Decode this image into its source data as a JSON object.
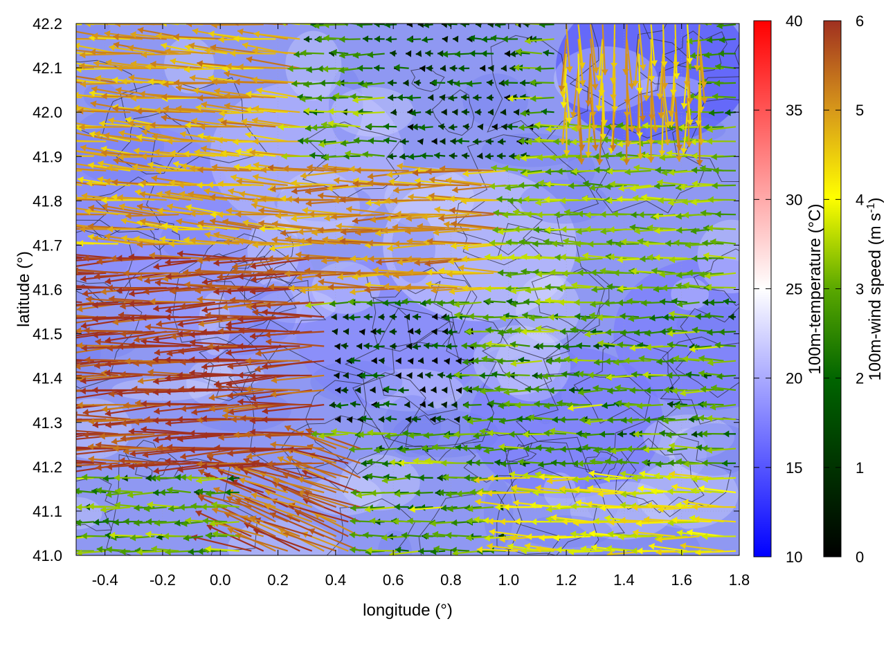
{
  "chart_data": {
    "type": "vector-field",
    "xlabel": "longitude (°)",
    "ylabel": "latitude (°)",
    "xlim": [
      -0.5,
      1.8
    ],
    "ylim": [
      41.0,
      42.2
    ],
    "xticks": [
      "-0.4",
      "-0.2",
      "0.0",
      "0.2",
      "0.4",
      "0.6",
      "0.8",
      "1.0",
      "1.2",
      "1.4",
      "1.6",
      "1.8"
    ],
    "xtick_values": [
      -0.4,
      -0.2,
      0.0,
      0.2,
      0.4,
      0.6,
      0.8,
      1.0,
      1.2,
      1.4,
      1.6,
      1.8
    ],
    "yticks": [
      "41.0",
      "41.1",
      "41.2",
      "41.3",
      "41.4",
      "41.5",
      "41.6",
      "41.7",
      "41.8",
      "41.9",
      "42.0",
      "42.1",
      "42.2"
    ],
    "ytick_values": [
      41.0,
      41.1,
      41.2,
      41.3,
      41.4,
      41.5,
      41.6,
      41.7,
      41.8,
      41.9,
      42.0,
      42.1,
      42.2
    ],
    "grid": true,
    "background_field": {
      "label": "100m-temperature (°C)",
      "range": [
        10,
        40
      ],
      "ticks": [
        "10",
        "15",
        "20",
        "25",
        "30",
        "35",
        "40"
      ],
      "tick_values": [
        10,
        15,
        20,
        25,
        30,
        35,
        40
      ],
      "colors": [
        "#0000ff",
        "#ffffff",
        "#ff0000"
      ],
      "typical_values": [
        {
          "lon": -0.3,
          "lat": 41.8,
          "temp": 18
        },
        {
          "lon": 0.0,
          "lat": 41.6,
          "temp": 19
        },
        {
          "lon": 0.3,
          "lat": 41.9,
          "temp": 21
        },
        {
          "lon": 0.6,
          "lat": 41.5,
          "temp": 18
        },
        {
          "lon": 0.9,
          "lat": 41.7,
          "temp": 22
        },
        {
          "lon": 1.2,
          "lat": 41.3,
          "temp": 17
        },
        {
          "lon": 1.5,
          "lat": 42.1,
          "temp": 14
        },
        {
          "lon": 1.7,
          "lat": 41.5,
          "temp": 17
        }
      ]
    },
    "vector_field": {
      "label": "100m-wind speed (m s-1)",
      "label_main": "100m-wind speed (m s",
      "label_sup": "-1",
      "label_tail": ")",
      "range": [
        0,
        6
      ],
      "ticks": [
        "0",
        "1",
        "2",
        "3",
        "4",
        "5",
        "6"
      ],
      "tick_values": [
        0,
        1,
        2,
        3,
        4,
        5,
        6
      ],
      "colors": [
        "#000000",
        "#006400",
        "#5aa800",
        "#ffff00",
        "#d89a1a",
        "#a03020"
      ],
      "predominant_direction": "westward",
      "regions": [
        {
          "lon": [
            -0.5,
            0.4
          ],
          "lat": [
            41.2,
            41.7
          ],
          "speed": 5.8,
          "dir_deg": 182
        },
        {
          "lon": [
            -0.5,
            0.3
          ],
          "lat": [
            41.7,
            42.2
          ],
          "speed": 4.6,
          "dir_deg": 175
        },
        {
          "lon": [
            0.3,
            1.0
          ],
          "lat": [
            41.6,
            41.9
          ],
          "speed": 4.8,
          "dir_deg": 180
        },
        {
          "lon": [
            0.4,
            0.9
          ],
          "lat": [
            41.3,
            41.55
          ],
          "speed": 0.6,
          "dir_deg": 180
        },
        {
          "lon": [
            0.6,
            1.1
          ],
          "lat": [
            41.9,
            42.2
          ],
          "speed": 0.8,
          "dir_deg": 180
        },
        {
          "lon": [
            1.0,
            1.8
          ],
          "lat": [
            41.0,
            41.2
          ],
          "speed": 3.6,
          "dir_deg": 178
        },
        {
          "lon": [
            1.0,
            1.8
          ],
          "lat": [
            41.6,
            42.0
          ],
          "speed": 2.6,
          "dir_deg": 180
        },
        {
          "lon": [
            1.2,
            1.7
          ],
          "lat": [
            42.0,
            42.2
          ],
          "speed": 4.5,
          "dir_deg": 270
        },
        {
          "lon": [
            0.1,
            0.5
          ],
          "lat": [
            41.0,
            41.25
          ],
          "speed": 5.5,
          "dir_deg": 160
        }
      ]
    },
    "contours": "terrain contour lines (dark grey)"
  }
}
